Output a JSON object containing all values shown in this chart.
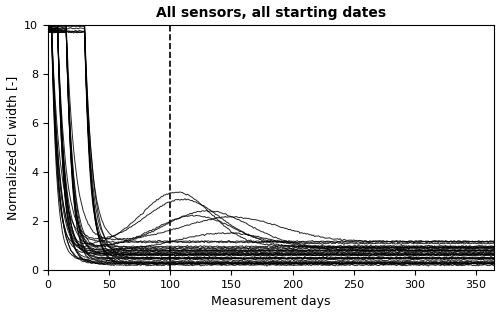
{
  "title": "All sensors, all starting dates",
  "xlabel": "Measurement days",
  "ylabel": "Normalized CI width [-]",
  "xlim": [
    0,
    365
  ],
  "ylim": [
    0,
    10
  ],
  "xticks": [
    0,
    50,
    100,
    150,
    200,
    250,
    300,
    350
  ],
  "yticks": [
    0,
    2,
    4,
    6,
    8,
    10
  ],
  "vline_x": 100,
  "vline_style": "--",
  "vline_color": "black",
  "num_days": 365,
  "line_color": "black",
  "line_alpha": 0.85,
  "line_width": 0.7,
  "figsize": [
    5.0,
    3.14
  ],
  "dpi": 100,
  "title_fontsize": 10,
  "label_fontsize": 9,
  "tick_fontsize": 8
}
